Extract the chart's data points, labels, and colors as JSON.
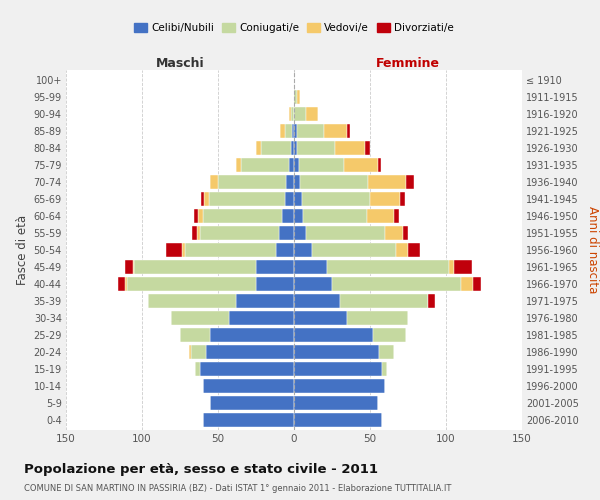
{
  "age_groups": [
    "0-4",
    "5-9",
    "10-14",
    "15-19",
    "20-24",
    "25-29",
    "30-34",
    "35-39",
    "40-44",
    "45-49",
    "50-54",
    "55-59",
    "60-64",
    "65-69",
    "70-74",
    "75-79",
    "80-84",
    "85-89",
    "90-94",
    "95-99",
    "100+"
  ],
  "birth_years": [
    "2006-2010",
    "2001-2005",
    "1996-2000",
    "1991-1995",
    "1986-1990",
    "1981-1985",
    "1976-1980",
    "1971-1975",
    "1966-1970",
    "1961-1965",
    "1956-1960",
    "1951-1955",
    "1946-1950",
    "1941-1945",
    "1936-1940",
    "1931-1935",
    "1926-1930",
    "1921-1925",
    "1916-1920",
    "1911-1915",
    "≤ 1910"
  ],
  "colors": {
    "celibi": "#4472c4",
    "coniugati": "#c5d9a0",
    "vedovi": "#f5c96a",
    "divorziati": "#c0000b"
  },
  "maschi": {
    "celibi": [
      60,
      55,
      60,
      62,
      58,
      55,
      43,
      38,
      25,
      25,
      12,
      10,
      8,
      6,
      5,
      3,
      2,
      1,
      0,
      0,
      0
    ],
    "coniugati": [
      0,
      0,
      0,
      3,
      10,
      20,
      38,
      58,
      85,
      80,
      60,
      52,
      52,
      50,
      45,
      32,
      20,
      5,
      2,
      0,
      0
    ],
    "vedovi": [
      0,
      0,
      0,
      0,
      1,
      0,
      0,
      0,
      1,
      1,
      2,
      2,
      3,
      3,
      5,
      3,
      3,
      3,
      1,
      0,
      0
    ],
    "divorziati": [
      0,
      0,
      0,
      0,
      0,
      0,
      0,
      0,
      5,
      5,
      10,
      3,
      3,
      2,
      0,
      0,
      0,
      0,
      0,
      0,
      0
    ]
  },
  "femmine": {
    "celibi": [
      58,
      55,
      60,
      58,
      56,
      52,
      35,
      30,
      25,
      22,
      12,
      8,
      6,
      5,
      4,
      3,
      2,
      2,
      0,
      0,
      0
    ],
    "coniugati": [
      0,
      0,
      0,
      3,
      10,
      22,
      40,
      58,
      85,
      80,
      55,
      52,
      42,
      45,
      45,
      30,
      25,
      18,
      8,
      2,
      0
    ],
    "vedovi": [
      0,
      0,
      0,
      0,
      0,
      0,
      0,
      0,
      8,
      3,
      8,
      12,
      18,
      20,
      25,
      22,
      20,
      15,
      8,
      2,
      0
    ],
    "divorziati": [
      0,
      0,
      0,
      0,
      0,
      0,
      0,
      5,
      5,
      12,
      8,
      3,
      3,
      3,
      5,
      2,
      3,
      2,
      0,
      0,
      0
    ]
  },
  "xlim": 150,
  "title": "Popolazione per età, sesso e stato civile - 2011",
  "subtitle": "COMUNE DI SAN MARTINO IN PASSIRIA (BZ) - Dati ISTAT 1° gennaio 2011 - Elaborazione TUTTITALIA.IT",
  "ylabel_left": "Fasce di età",
  "ylabel_right": "Anni di nascita",
  "xlabel_left": "Maschi",
  "xlabel_right": "Femmine",
  "legend_labels": [
    "Celibi/Nubili",
    "Coniugati/e",
    "Vedovi/e",
    "Divorziati/e"
  ],
  "bg_color": "#f0f0f0",
  "plot_bg_color": "#ffffff"
}
